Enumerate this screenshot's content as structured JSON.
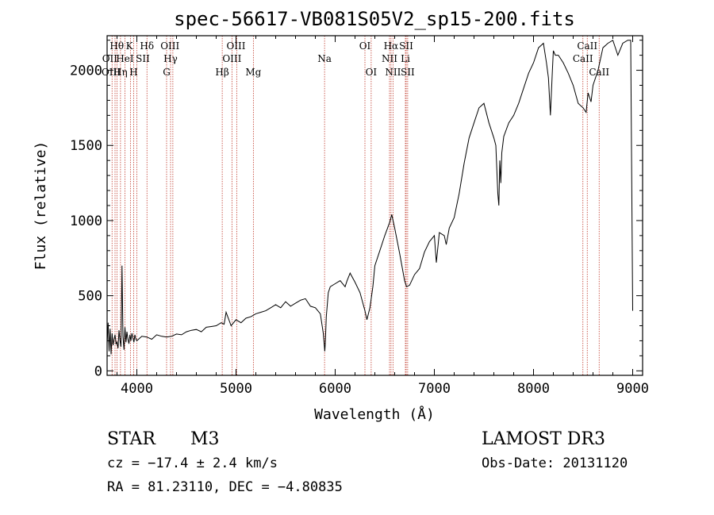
{
  "chart_data": {
    "type": "line",
    "title": "spec-56617-VB081S05V2_sp15-200.fits",
    "xlabel": "Wavelength (Å)",
    "ylabel": "Flux (relative)",
    "xlim": [
      3700,
      9100
    ],
    "ylim": [
      -30,
      2230
    ],
    "xticks": [
      4000,
      5000,
      6000,
      7000,
      8000,
      9000
    ],
    "yticks": [
      0,
      500,
      1000,
      1500,
      2000
    ],
    "series": [
      {
        "name": "flux",
        "x": [
          3700,
          3710,
          3720,
          3730,
          3740,
          3750,
          3760,
          3770,
          3780,
          3790,
          3800,
          3810,
          3820,
          3830,
          3840,
          3850,
          3860,
          3870,
          3880,
          3890,
          3900,
          3910,
          3920,
          3930,
          3940,
          3950,
          3960,
          3970,
          3980,
          3990,
          4000,
          4050,
          4100,
          4150,
          4200,
          4250,
          4300,
          4350,
          4400,
          4450,
          4500,
          4550,
          4600,
          4650,
          4700,
          4750,
          4800,
          4850,
          4880,
          4900,
          4950,
          5000,
          5050,
          5100,
          5150,
          5200,
          5250,
          5300,
          5350,
          5400,
          5450,
          5500,
          5550,
          5600,
          5650,
          5700,
          5750,
          5800,
          5850,
          5880,
          5895,
          5900,
          5910,
          5930,
          5950,
          6000,
          6050,
          6100,
          6120,
          6150,
          6200,
          6250,
          6300,
          6320,
          6350,
          6380,
          6400,
          6450,
          6500,
          6550,
          6570,
          6600,
          6650,
          6700,
          6720,
          6750,
          6800,
          6850,
          6900,
          6950,
          7000,
          7020,
          7050,
          7100,
          7120,
          7150,
          7200,
          7250,
          7300,
          7350,
          7400,
          7450,
          7500,
          7550,
          7600,
          7620,
          7640,
          7650,
          7660,
          7670,
          7680,
          7700,
          7750,
          7800,
          7850,
          7900,
          7950,
          8000,
          8050,
          8100,
          8130,
          8150,
          8170,
          8190,
          8200,
          8220,
          8250,
          8300,
          8350,
          8400,
          8450,
          8500,
          8530,
          8550,
          8580,
          8600,
          8650,
          8700,
          8750,
          8800,
          8850,
          8900,
          8950,
          8980,
          9000
        ],
        "y": [
          180,
          320,
          130,
          280,
          110,
          250,
          170,
          210,
          240,
          180,
          190,
          150,
          270,
          200,
          160,
          700,
          230,
          140,
          290,
          190,
          260,
          210,
          180,
          240,
          200,
          250,
          220,
          190,
          240,
          210,
          200,
          230,
          225,
          210,
          240,
          230,
          225,
          230,
          245,
          240,
          260,
          270,
          275,
          260,
          290,
          295,
          300,
          320,
          310,
          390,
          300,
          340,
          320,
          350,
          360,
          380,
          390,
          400,
          420,
          440,
          420,
          460,
          430,
          450,
          470,
          480,
          430,
          420,
          380,
          250,
          130,
          180,
          360,
          520,
          560,
          580,
          600,
          560,
          600,
          650,
          590,
          520,
          400,
          340,
          420,
          560,
          700,
          800,
          900,
          990,
          1040,
          950,
          780,
          600,
          560,
          570,
          640,
          680,
          790,
          860,
          900,
          720,
          920,
          900,
          840,
          950,
          1020,
          1180,
          1380,
          1550,
          1650,
          1750,
          1780,
          1650,
          1550,
          1500,
          1180,
          1100,
          1400,
          1250,
          1450,
          1560,
          1650,
          1700,
          1780,
          1880,
          1980,
          2050,
          2150,
          2180,
          2050,
          1950,
          1700,
          2000,
          2130,
          2100,
          2100,
          2050,
          1980,
          1900,
          1780,
          1750,
          1720,
          1850,
          1790,
          1900,
          2000,
          2150,
          2180,
          2200,
          2100,
          2180,
          2200,
          2200,
          400
        ]
      }
    ],
    "reference_lines": [
      {
        "x": 3750
      },
      {
        "x": 3780
      },
      {
        "x": 3800
      },
      {
        "x": 3835
      },
      {
        "x": 3880
      },
      {
        "x": 3935
      },
      {
        "x": 3968
      },
      {
        "x": 4000
      },
      {
        "x": 4102
      },
      {
        "x": 4300
      },
      {
        "x": 4340
      },
      {
        "x": 4363
      },
      {
        "x": 4861
      },
      {
        "x": 4959
      },
      {
        "x": 5007
      },
      {
        "x": 5175
      },
      {
        "x": 5893
      },
      {
        "x": 6300
      },
      {
        "x": 6363
      },
      {
        "x": 6548
      },
      {
        "x": 6563
      },
      {
        "x": 6583
      },
      {
        "x": 6708
      },
      {
        "x": 6716
      },
      {
        "x": 6731
      },
      {
        "x": 8498
      },
      {
        "x": 8542
      },
      {
        "x": 8662
      }
    ],
    "annotations": [
      {
        "text": "Hθ",
        "x": 3798,
        "row": 1
      },
      {
        "text": "K",
        "x": 3925,
        "row": 1
      },
      {
        "text": "Hδ",
        "x": 4102,
        "row": 1
      },
      {
        "text": "OIII",
        "x": 4334,
        "row": 1
      },
      {
        "text": "OIII",
        "x": 5000,
        "row": 1
      },
      {
        "text": "OI",
        "x": 6300,
        "row": 1
      },
      {
        "text": "Hα",
        "x": 6563,
        "row": 1
      },
      {
        "text": "SII",
        "x": 6716,
        "row": 1
      },
      {
        "text": "CaII",
        "x": 8542,
        "row": 1
      },
      {
        "text": "OII",
        "x": 3727,
        "row": 2
      },
      {
        "text": "HeI",
        "x": 3880,
        "row": 2
      },
      {
        "text": "SII",
        "x": 4060,
        "row": 2
      },
      {
        "text": "Hγ",
        "x": 4340,
        "row": 2
      },
      {
        "text": "OIII",
        "x": 4959,
        "row": 2
      },
      {
        "text": "Na",
        "x": 5893,
        "row": 2
      },
      {
        "text": "NII",
        "x": 6548,
        "row": 2
      },
      {
        "text": "Li",
        "x": 6708,
        "row": 2
      },
      {
        "text": "CaII",
        "x": 8498,
        "row": 2
      },
      {
        "text": "OIII",
        "x": 3740,
        "row": 3
      },
      {
        "text": "Hη",
        "x": 3835,
        "row": 3
      },
      {
        "text": "H",
        "x": 3968,
        "row": 3
      },
      {
        "text": "G",
        "x": 4300,
        "row": 3
      },
      {
        "text": "Hβ",
        "x": 4861,
        "row": 3
      },
      {
        "text": "Mg",
        "x": 5175,
        "row": 3
      },
      {
        "text": "OI",
        "x": 6363,
        "row": 3
      },
      {
        "text": "NII",
        "x": 6583,
        "row": 3
      },
      {
        "text": "SII",
        "x": 6731,
        "row": 3
      },
      {
        "text": "CaII",
        "x": 8662,
        "row": 3
      }
    ]
  },
  "info": {
    "obj_class": "STAR",
    "subclass": "M3",
    "survey": "LAMOST DR3",
    "cz": "cz = −17.4 ± 2.4 km/s",
    "obs_date": "Obs-Date: 20131120",
    "coords": "RA =  81.23110, DEC =  −4.80835"
  },
  "colors": {
    "line": "#000000",
    "reference": "#c0392b",
    "axis": "#000000"
  }
}
